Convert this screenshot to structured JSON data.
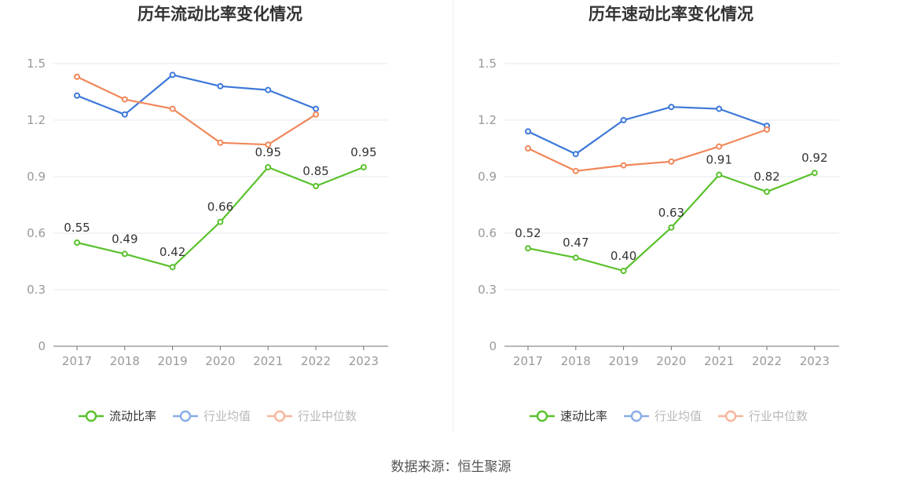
{
  "colors": {
    "primary": "#5ac12d",
    "avg": "#3c78d8",
    "median": "#f0875a"
  },
  "charts": [
    {
      "chart_data": {
        "type": "line",
        "title": "历年流动比率变化情况",
        "categories": [
          "2017",
          "2018",
          "2019",
          "2020",
          "2021",
          "2022",
          "2023"
        ],
        "yticks": [
          "0",
          "0.3",
          "0.6",
          "0.9",
          "1.2",
          "1.5"
        ],
        "ylim": [
          0,
          1.5
        ],
        "grid": true,
        "legend": "bottom",
        "series": [
          {
            "name": "流动比率",
            "values": [
              0.55,
              0.49,
              0.42,
              0.66,
              0.95,
              0.85,
              0.95
            ],
            "labels": [
              "0.55",
              "0.49",
              "0.42",
              "0.66",
              "0.95",
              "0.85",
              "0.95"
            ]
          },
          {
            "name": "行业均值",
            "values": [
              1.33,
              1.23,
              1.44,
              1.38,
              1.36,
              1.26,
              null
            ]
          },
          {
            "name": "行业中位数",
            "values": [
              1.43,
              1.31,
              1.26,
              1.08,
              1.07,
              1.23,
              null
            ]
          }
        ]
      }
    },
    {
      "chart_data": {
        "type": "line",
        "title": "历年速动比率变化情况",
        "categories": [
          "2017",
          "2018",
          "2019",
          "2020",
          "2021",
          "2022",
          "2023"
        ],
        "yticks": [
          "0",
          "0.3",
          "0.6",
          "0.9",
          "1.2",
          "1.5"
        ],
        "ylim": [
          0,
          1.5
        ],
        "grid": true,
        "legend": "bottom",
        "series": [
          {
            "name": "速动比率",
            "values": [
              0.52,
              0.47,
              0.4,
              0.63,
              0.91,
              0.82,
              0.92
            ],
            "labels": [
              "0.52",
              "0.47",
              "0.40",
              "0.63",
              "0.91",
              "0.82",
              "0.92"
            ]
          },
          {
            "name": "行业均值",
            "values": [
              1.14,
              1.02,
              1.2,
              1.27,
              1.26,
              1.17,
              null
            ]
          },
          {
            "name": "行业中位数",
            "values": [
              1.05,
              0.93,
              0.96,
              0.98,
              1.06,
              1.15,
              null
            ]
          }
        ]
      }
    }
  ],
  "source": "数据来源：恒生聚源"
}
